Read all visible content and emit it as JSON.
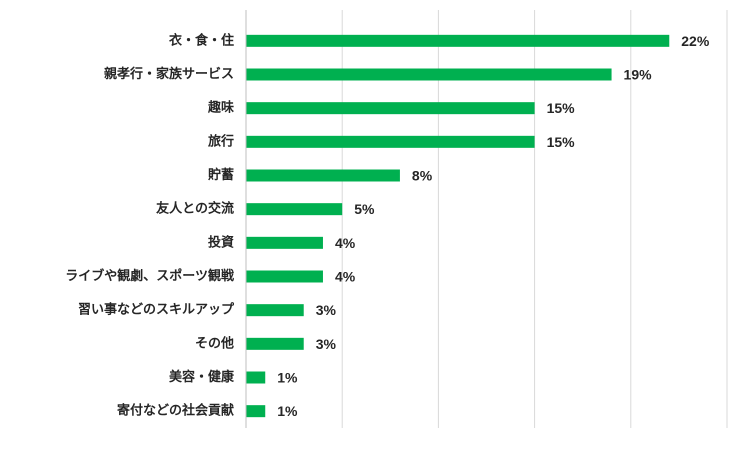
{
  "chart_data": {
    "type": "bar",
    "orientation": "horizontal",
    "title": "",
    "xlabel": "",
    "ylabel": "",
    "categories": [
      "衣・食・住",
      "親孝行・家族サービス",
      "趣味",
      "旅行",
      "貯蓄",
      "友人との交流",
      "投資",
      "ライブや観劇、スポーツ観戦",
      "習い事などのスキルアップ",
      "その他",
      "美容・健康",
      "寄付などの社会貢献"
    ],
    "values": [
      22,
      19,
      15,
      15,
      8,
      5,
      4,
      4,
      3,
      3,
      1,
      1
    ],
    "value_labels": [
      "22%",
      "19%",
      "15%",
      "15%",
      "8%",
      "5%",
      "4%",
      "4%",
      "3%",
      "3%",
      "1%",
      "1%"
    ],
    "unit": "%",
    "xlim": [
      0,
      25
    ],
    "grid": true,
    "legend": "none",
    "bar_color": "#00b050"
  }
}
